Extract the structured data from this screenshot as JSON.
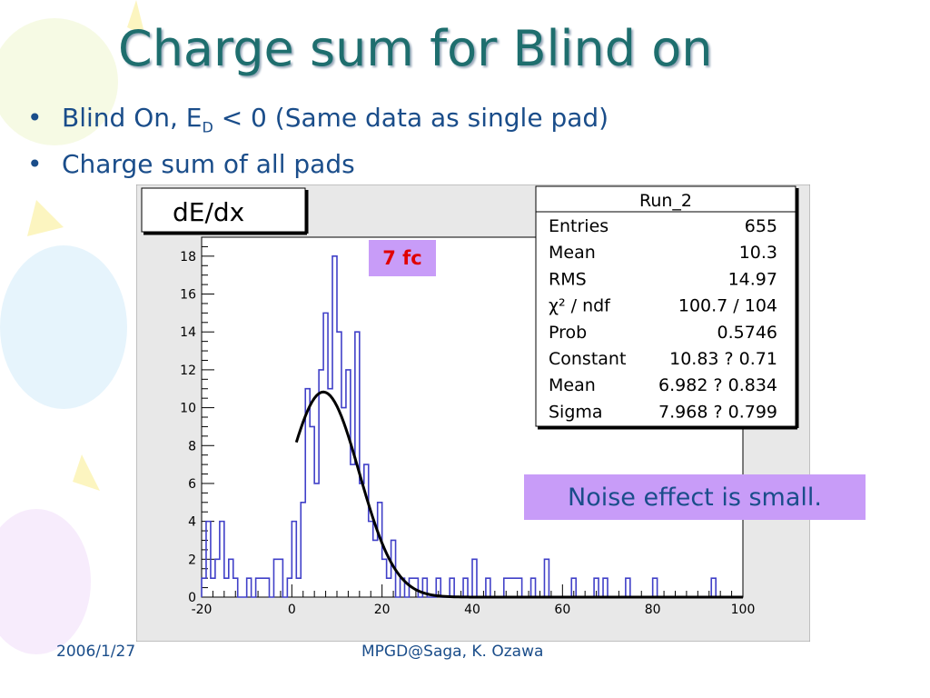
{
  "slide": {
    "title": "Charge sum for Blind on",
    "bullets": [
      {
        "pre": "Blind On, E",
        "sub": "D",
        "post": " < 0 (Same data as single pad)"
      },
      {
        "pre": "Charge sum of all pads",
        "sub": "",
        "post": ""
      }
    ],
    "annotation_fc": "7 fc",
    "annotation_noise": "Noise effect is small.",
    "footer_date": "2006/1/27",
    "footer_author": "MPGD@Saga, K. Ozawa"
  },
  "colors": {
    "title": "#1e6e6e",
    "text": "#1a4d8a",
    "histogram": "#4040c8",
    "fit": "#000000",
    "annotation_bg": "#c89cf8",
    "annotation_fc_text": "#e00000",
    "frame_bg": "#e8e8e8"
  },
  "chart_data": {
    "type": "histogram",
    "title": "dE/dx",
    "xlim": [
      -20,
      100
    ],
    "ylim": [
      0,
      19
    ],
    "x_ticks": [
      -20,
      0,
      20,
      40,
      60,
      80,
      100
    ],
    "y_ticks": [
      0,
      2,
      4,
      6,
      8,
      10,
      12,
      14,
      16,
      18
    ],
    "bin_width": 1,
    "x": [
      -20,
      -19,
      -18,
      -17,
      -16,
      -15,
      -14,
      -13,
      -12,
      -11,
      -10,
      -9,
      -8,
      -7,
      -6,
      -5,
      -4,
      -3,
      -2,
      -1,
      0,
      1,
      2,
      3,
      4,
      5,
      6,
      7,
      8,
      9,
      10,
      11,
      12,
      13,
      14,
      15,
      16,
      17,
      18,
      19,
      20,
      21,
      22,
      23,
      24,
      25,
      26,
      27,
      28,
      29,
      30,
      31,
      32,
      33,
      34,
      35,
      36,
      37,
      38,
      39,
      40,
      41,
      42,
      43,
      44,
      45,
      46,
      47,
      48,
      49,
      50,
      51,
      52,
      53,
      54,
      55,
      56,
      57,
      58,
      59,
      60,
      61,
      62,
      63,
      64,
      65,
      66,
      67,
      68,
      69,
      70,
      71,
      72,
      73,
      74,
      75,
      76,
      77,
      78,
      79,
      80,
      81,
      82,
      83,
      84,
      85,
      86,
      87,
      88,
      89,
      90,
      91,
      92,
      93,
      94,
      95,
      96,
      97,
      98,
      99
    ],
    "counts": [
      1,
      4,
      1,
      2,
      4,
      1,
      2,
      1,
      0,
      0,
      1,
      0,
      1,
      1,
      1,
      0,
      2,
      2,
      0,
      1,
      4,
      1,
      5,
      11,
      9,
      6,
      12,
      15,
      11,
      18,
      14,
      10,
      12,
      7,
      14,
      6,
      7,
      4,
      3,
      5,
      2,
      1,
      3,
      0,
      1,
      0,
      1,
      1,
      0,
      1,
      0,
      0,
      1,
      0,
      0,
      1,
      0,
      0,
      1,
      0,
      2,
      0,
      0,
      1,
      0,
      0,
      0,
      1,
      1,
      1,
      1,
      0,
      0,
      1,
      0,
      0,
      2,
      0,
      0,
      0,
      0,
      0,
      1,
      0,
      0,
      0,
      0,
      1,
      0,
      1,
      0,
      0,
      0,
      0,
      1,
      0,
      0,
      0,
      0,
      0,
      1,
      0,
      0,
      0,
      0,
      0,
      0,
      0,
      0,
      0,
      0,
      0,
      0,
      1,
      0,
      0,
      0,
      0,
      0,
      0
    ],
    "fit": {
      "function": "gaus",
      "constant": 10.83,
      "mean": 6.982,
      "sigma": 7.968,
      "x_range": [
        1,
        100
      ]
    },
    "stats_box": {
      "title": "Run_2",
      "rows": [
        {
          "label": "Entries",
          "value": "655"
        },
        {
          "label": "Mean",
          "value": "10.3"
        },
        {
          "label": "RMS",
          "value": "14.97"
        },
        {
          "label": "χ² / ndf",
          "value": "100.7 / 104"
        },
        {
          "label": "Prob",
          "value": "0.5746"
        },
        {
          "label": "Constant",
          "value": "10.83  ? 0.71"
        },
        {
          "label": "Mean",
          "value": "6.982  ? 0.834"
        },
        {
          "label": "Sigma",
          "value": "7.968  ? 0.799"
        }
      ]
    }
  }
}
